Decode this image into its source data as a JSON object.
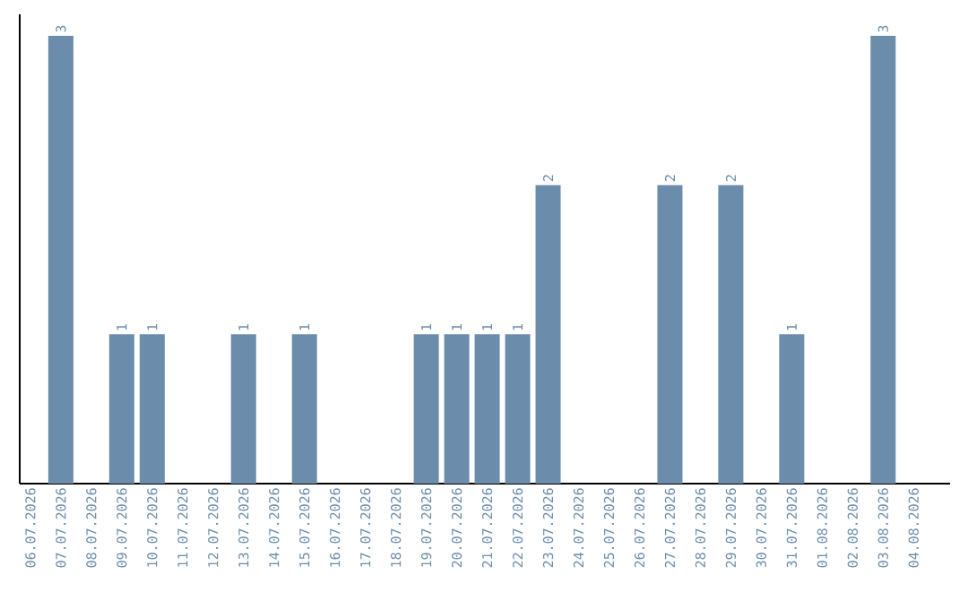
{
  "chart_data": {
    "type": "bar",
    "categories": [
      "06.07.2026",
      "07.07.2026",
      "08.07.2026",
      "09.07.2026",
      "10.07.2026",
      "11.07.2026",
      "12.07.2026",
      "13.07.2026",
      "14.07.2026",
      "15.07.2026",
      "16.07.2026",
      "17.07.2026",
      "18.07.2026",
      "19.07.2026",
      "20.07.2026",
      "21.07.2026",
      "22.07.2026",
      "23.07.2026",
      "24.07.2026",
      "25.07.2026",
      "26.07.2026",
      "27.07.2026",
      "28.07.2026",
      "29.07.2026",
      "30.07.2026",
      "31.07.2026",
      "01.08.2026",
      "02.08.2026",
      "03.08.2026",
      "04.08.2026"
    ],
    "values": [
      0,
      3,
      0,
      1,
      1,
      0,
      0,
      1,
      0,
      1,
      0,
      0,
      0,
      1,
      1,
      1,
      1,
      2,
      0,
      0,
      0,
      2,
      0,
      2,
      0,
      1,
      0,
      0,
      3,
      0
    ],
    "value_labels": [
      null,
      "3",
      null,
      "1",
      "1",
      null,
      null,
      "1",
      null,
      "1",
      null,
      null,
      null,
      "1",
      "1",
      "1",
      "1",
      "2",
      null,
      null,
      null,
      "2",
      null,
      "2",
      null,
      "1",
      null,
      null,
      "3",
      null
    ],
    "color": "#6b8cab"
  }
}
